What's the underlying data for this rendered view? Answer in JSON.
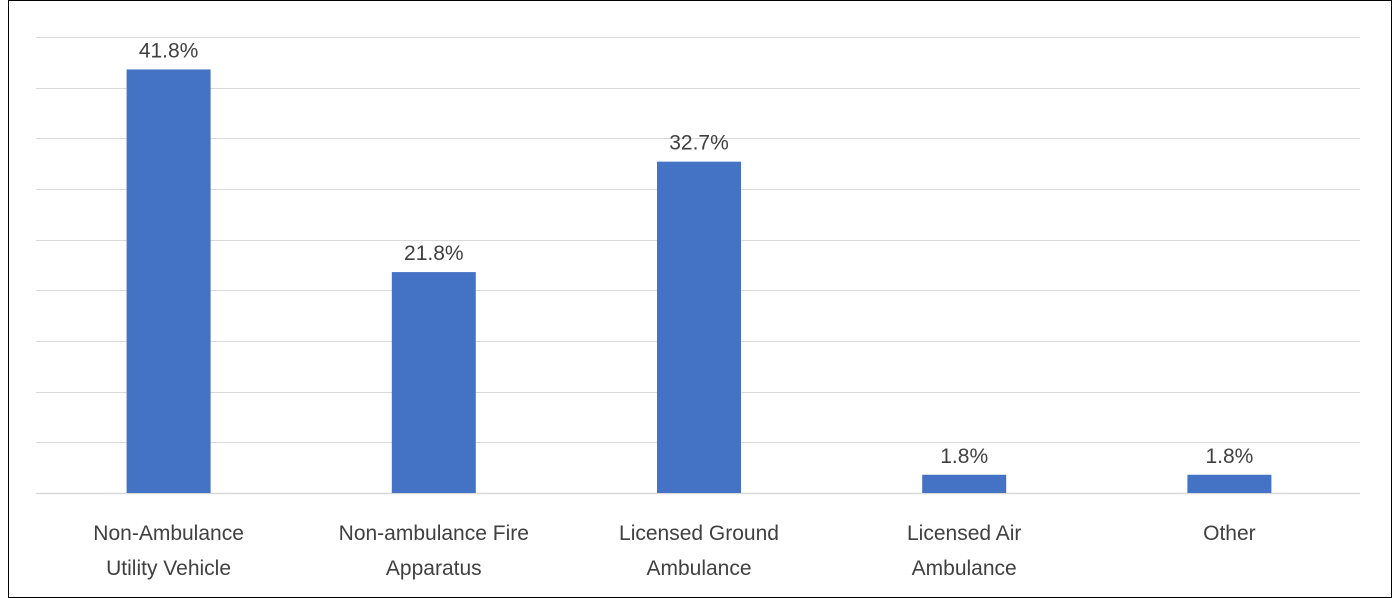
{
  "chart_data": {
    "type": "bar",
    "title": "",
    "xlabel": "",
    "ylabel": "",
    "categories": [
      [
        "Non-Ambulance",
        "Utility Vehicle"
      ],
      [
        "Non-ambulance Fire",
        "Apparatus"
      ],
      [
        "Licensed Ground",
        "Ambulance"
      ],
      [
        "Licensed Air",
        "Ambulance"
      ],
      [
        "Other"
      ]
    ],
    "values": [
      41.8,
      21.8,
      32.7,
      1.8,
      1.8
    ],
    "value_labels": [
      "41.8%",
      "21.8%",
      "32.7%",
      "1.8%",
      "1.8%"
    ],
    "ylim": [
      0,
      45
    ],
    "grid_step": 5,
    "grid": true,
    "bar_color": "#4472C4",
    "grid_color": "#D9D9D9",
    "text_color": "#404040"
  }
}
